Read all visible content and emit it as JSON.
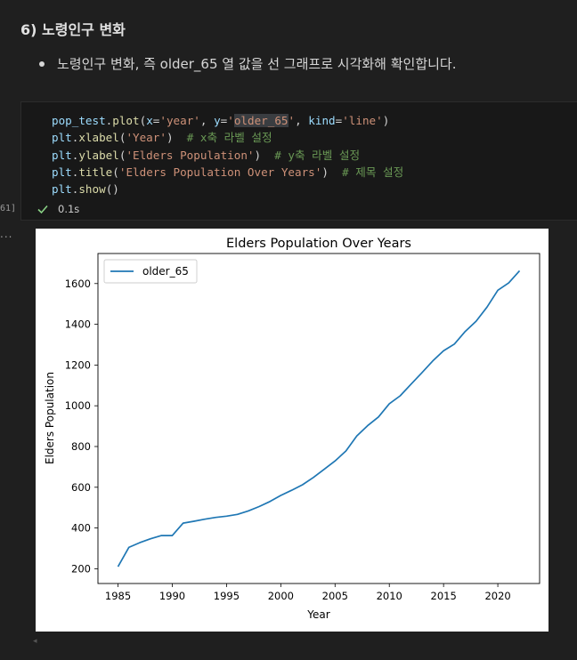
{
  "markdown": {
    "heading": "6) 노령인구 변화",
    "bullet": "노령인구 변화, 즉 older_65 열 값을 선 그래프로 시각화해 확인합니다."
  },
  "cell": {
    "code_lines": [
      [
        [
          "var",
          "pop_test"
        ],
        [
          "punc",
          "."
        ],
        [
          "fn",
          "plot"
        ],
        [
          "punc",
          "("
        ],
        [
          "var",
          "x"
        ],
        [
          "op",
          "="
        ],
        [
          "str",
          "'year'"
        ],
        [
          "punc",
          ", "
        ],
        [
          "var",
          "y"
        ],
        [
          "op",
          "="
        ],
        [
          "str",
          "'"
        ],
        [
          "str-hl",
          "older_65"
        ],
        [
          "str",
          "'"
        ],
        [
          "punc",
          ", "
        ],
        [
          "var",
          "kind"
        ],
        [
          "op",
          "="
        ],
        [
          "str",
          "'line'"
        ],
        [
          "punc",
          ")"
        ]
      ],
      [
        [
          "var",
          "plt"
        ],
        [
          "punc",
          "."
        ],
        [
          "fn",
          "xlabel"
        ],
        [
          "punc",
          "("
        ],
        [
          "str",
          "'Year'"
        ],
        [
          "punc",
          ")"
        ],
        [
          "punc",
          "  "
        ],
        [
          "cmt",
          "# x축 라벨 설정"
        ]
      ],
      [
        [
          "var",
          "plt"
        ],
        [
          "punc",
          "."
        ],
        [
          "fn",
          "ylabel"
        ],
        [
          "punc",
          "("
        ],
        [
          "str",
          "'Elders Population'"
        ],
        [
          "punc",
          ")"
        ],
        [
          "punc",
          "  "
        ],
        [
          "cmt",
          "# y축 라벨 설정"
        ]
      ],
      [
        [
          "var",
          "plt"
        ],
        [
          "punc",
          "."
        ],
        [
          "fn",
          "title"
        ],
        [
          "punc",
          "("
        ],
        [
          "str",
          "'Elders Population Over Years'"
        ],
        [
          "punc",
          ")"
        ],
        [
          "punc",
          "  "
        ],
        [
          "cmt",
          "# 제목 설정"
        ]
      ],
      [
        [
          "var",
          "plt"
        ],
        [
          "punc",
          "."
        ],
        [
          "fn",
          "show"
        ],
        [
          "punc",
          "()"
        ]
      ]
    ],
    "status_time": "0.1s",
    "exec_count": "61]",
    "output_marker": "..."
  },
  "chart_data": {
    "type": "line",
    "title": "Elders Population Over Years",
    "xlabel": "Year",
    "ylabel": "Elders Population",
    "xlim": [
      1983.15,
      2023.85
    ],
    "ylim": [
      127.5,
      1747.5
    ],
    "xticks": [
      1985,
      1990,
      1995,
      2000,
      2005,
      2010,
      2015,
      2020
    ],
    "yticks": [
      200,
      400,
      600,
      800,
      1000,
      1200,
      1400,
      1600
    ],
    "legend_position": "upper-left",
    "grid": false,
    "series": [
      {
        "name": "older_65",
        "color": "#1f77b4",
        "x": [
          1985,
          1986,
          1987,
          1988,
          1989,
          1990,
          1991,
          1992,
          1993,
          1994,
          1995,
          1996,
          1997,
          1998,
          1999,
          2000,
          2001,
          2002,
          2003,
          2004,
          2005,
          2006,
          2007,
          2008,
          2009,
          2010,
          2011,
          2012,
          2013,
          2014,
          2015,
          2016,
          2017,
          2018,
          2019,
          2020,
          2021,
          2022
        ],
        "y": [
          210,
          305,
          328,
          347,
          363,
          363,
          424,
          433,
          443,
          452,
          458,
          467,
          484,
          505,
          530,
          560,
          585,
          612,
          648,
          688,
          729,
          778,
          852,
          902,
          945,
          1010,
          1049,
          1106,
          1162,
          1220,
          1270,
          1303,
          1365,
          1415,
          1484,
          1567,
          1603,
          1663
        ]
      }
    ]
  }
}
